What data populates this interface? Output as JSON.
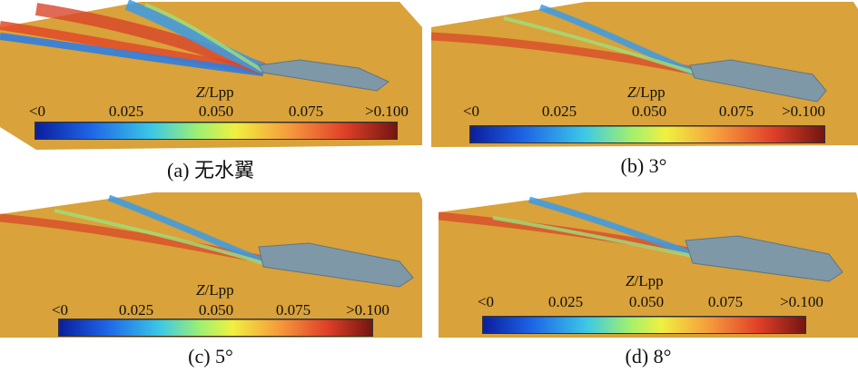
{
  "colorbar": {
    "title_var": "Z",
    "title_rest": "/Lpp",
    "ticks": [
      "<0",
      "0.025",
      "0.050",
      "0.075",
      ">0.100"
    ],
    "colors": [
      "#0a1e9c",
      "#1e64e6",
      "#3cc8e6",
      "#a0f070",
      "#f0f040",
      "#f59a3c",
      "#e04028",
      "#6e1410"
    ]
  },
  "panels": [
    {
      "caption": "(a) 无水翼"
    },
    {
      "caption": "(b) 3°"
    },
    {
      "caption": "(c) 5°"
    },
    {
      "caption": "(d) 8°"
    }
  ],
  "colors": {
    "free_surface": "#d9a23a",
    "wake_trough": "#2f7ee0",
    "wake_crest": "#d8452a",
    "hull": "#7f98a8"
  }
}
